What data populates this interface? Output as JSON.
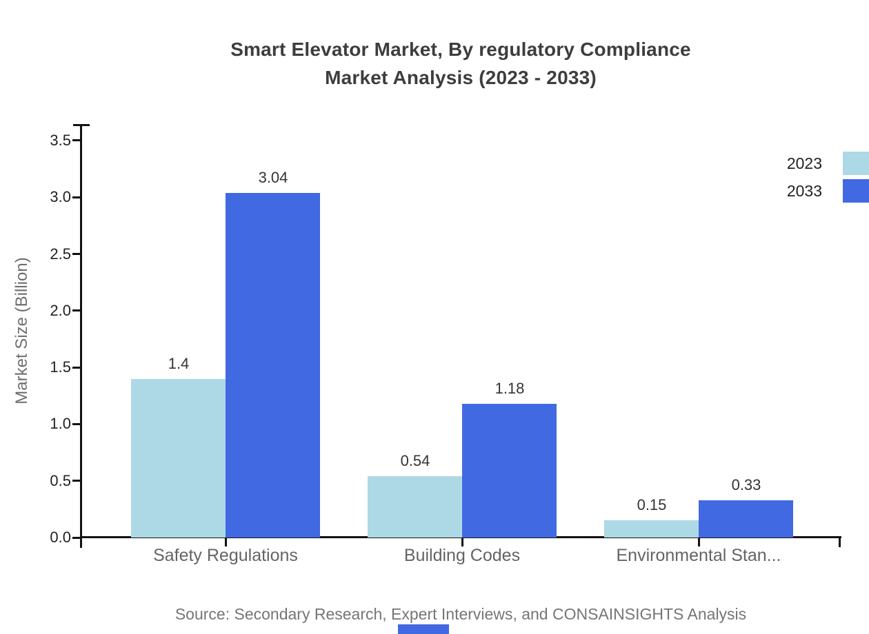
{
  "title": {
    "line1": "Smart Elevator Market, By regulatory Compliance",
    "line2": "Market Analysis (2023 - 2033)"
  },
  "legend": [
    {
      "label": "2023",
      "color": "#ADD8E6"
    },
    {
      "label": "2033",
      "color": "#4169E1"
    }
  ],
  "source": "Source: Secondary Research, Expert Interviews, and CONSAINSIGHTS Analysis",
  "colors": {
    "series_2023": "#ADD8E6",
    "series_2033": "#4169E1",
    "axis": "#111111",
    "title_text": "#3d3d3d",
    "tick_text": "#222222",
    "category_text": "#646464",
    "value_text": "#333333",
    "source_text": "#757575",
    "ylabel_text": "#6e6e6e",
    "brand": "#4169E1"
  },
  "chart_data": {
    "type": "bar",
    "title": "Smart Elevator Market, By regulatory Compliance Market Analysis (2023 - 2033)",
    "categories": [
      "Safety Regulations",
      "Building Codes",
      "Environmental Stan..."
    ],
    "series": [
      {
        "name": "2023",
        "color": "#ADD8E6",
        "values": [
          1.4,
          0.54,
          0.15
        ],
        "labels": [
          "1.4",
          "0.54",
          "0.15"
        ]
      },
      {
        "name": "2033",
        "color": "#4169E1",
        "values": [
          3.04,
          1.18,
          0.33
        ],
        "labels": [
          "3.04",
          "1.18",
          "0.33"
        ]
      }
    ],
    "xlabel": "",
    "ylabel": "Market Size (Billion)",
    "ylim": [
      0,
      3.65
    ],
    "y_ticks": [
      0.0,
      0.5,
      1.0,
      1.5,
      2.0,
      2.5,
      3.0,
      3.5
    ],
    "y_tick_labels": [
      "0.0",
      "0.5",
      "1.0",
      "1.5",
      "2.0",
      "2.5",
      "3.0",
      "3.5"
    ],
    "grid": false,
    "legend_position": "top-right"
  }
}
